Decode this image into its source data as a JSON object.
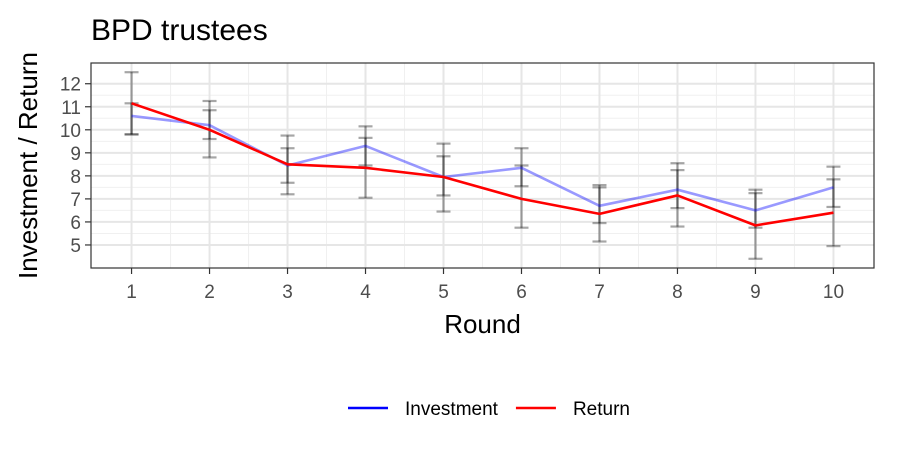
{
  "chart_data": {
    "type": "line",
    "title": "BPD trustees",
    "xlabel": "Round",
    "ylabel": "Investment / Return",
    "xlim": [
      0.48,
      10.52
    ],
    "ylim": [
      4.0,
      12.9
    ],
    "x_ticks": [
      1,
      2,
      3,
      4,
      5,
      6,
      7,
      8,
      9,
      10
    ],
    "y_ticks": [
      5,
      6,
      7,
      8,
      9,
      10,
      11,
      12
    ],
    "grid": true,
    "legend_position": "bottom",
    "x": [
      1,
      2,
      3,
      4,
      5,
      6,
      7,
      8,
      9,
      10
    ],
    "series": [
      {
        "name": "Investment",
        "color": "#0000ff",
        "values": [
          10.6,
          10.2,
          8.45,
          9.3,
          7.95,
          8.35,
          6.7,
          7.4,
          6.5,
          7.5
        ],
        "error_low": [
          9.8,
          9.6,
          7.7,
          8.45,
          7.15,
          7.55,
          5.95,
          6.6,
          5.75,
          6.65
        ],
        "error_high": [
          11.15,
          10.85,
          9.2,
          9.65,
          8.85,
          8.45,
          7.5,
          8.25,
          7.25,
          7.85
        ]
      },
      {
        "name": "Return",
        "color": "#ff0000",
        "values": [
          11.15,
          10.0,
          8.5,
          8.35,
          7.95,
          7.0,
          6.35,
          7.15,
          5.85,
          6.4
        ],
        "error_low": [
          9.8,
          8.8,
          7.2,
          7.05,
          6.45,
          5.75,
          5.15,
          5.8,
          4.4,
          4.95
        ],
        "error_high": [
          12.5,
          11.25,
          9.75,
          10.15,
          9.4,
          9.2,
          7.6,
          8.55,
          7.4,
          8.4
        ]
      }
    ]
  }
}
